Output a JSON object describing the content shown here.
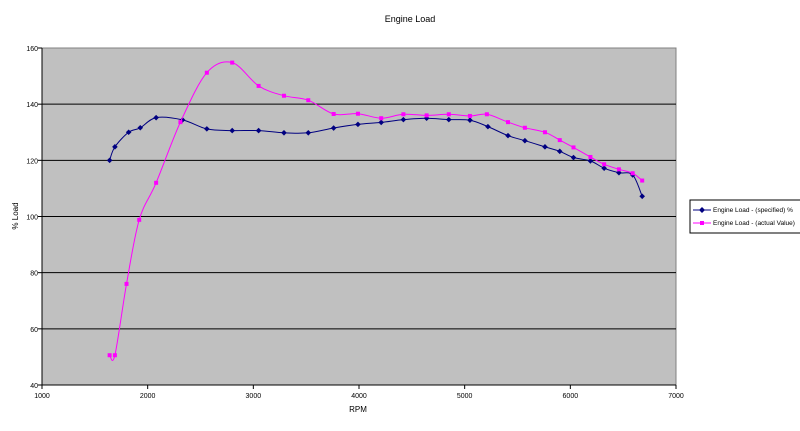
{
  "chart_data": {
    "type": "line",
    "title": "Engine Load",
    "xlabel": "RPM",
    "ylabel": "% Load",
    "xlim": [
      1000,
      7000
    ],
    "ylim": [
      40,
      160
    ],
    "x_ticks": [
      1000,
      2000,
      3000,
      4000,
      5000,
      6000,
      7000
    ],
    "y_ticks": [
      40,
      60,
      80,
      100,
      120,
      140,
      160
    ],
    "grid": "horizontal",
    "legend_position": "right",
    "plot_background": "#c0c0c0",
    "series": [
      {
        "name": "Engine Load - (specified)  %",
        "color": "#000080",
        "marker": "diamond",
        "points": [
          [
            1640,
            120.0
          ],
          [
            1690,
            124.8
          ],
          [
            1820,
            130.0
          ],
          [
            1930,
            131.6
          ],
          [
            2080,
            135.2
          ],
          [
            2330,
            134.4
          ],
          [
            2560,
            131.2
          ],
          [
            2800,
            130.6
          ],
          [
            3050,
            130.6
          ],
          [
            3290,
            129.8
          ],
          [
            3520,
            129.8
          ],
          [
            3760,
            131.5
          ],
          [
            3990,
            132.8
          ],
          [
            4210,
            133.5
          ],
          [
            4420,
            134.5
          ],
          [
            4640,
            135.0
          ],
          [
            4850,
            134.5
          ],
          [
            5050,
            134.3
          ],
          [
            5220,
            132.0
          ],
          [
            5410,
            128.8
          ],
          [
            5570,
            127.0
          ],
          [
            5760,
            124.8
          ],
          [
            5900,
            123.2
          ],
          [
            6030,
            121.0
          ],
          [
            6190,
            119.8
          ],
          [
            6320,
            117.2
          ],
          [
            6460,
            115.6
          ],
          [
            6590,
            114.8
          ],
          [
            6680,
            107.2
          ]
        ]
      },
      {
        "name": "Engine Load - (actual Value)",
        "color": "#ff00ff",
        "marker": "square",
        "points": [
          [
            1640,
            50.6
          ],
          [
            1690,
            50.6
          ],
          [
            1800,
            76.0
          ],
          [
            1920,
            98.8
          ],
          [
            2080,
            112.0
          ],
          [
            2310,
            133.6
          ],
          [
            2560,
            151.2
          ],
          [
            2800,
            154.8
          ],
          [
            3050,
            146.5
          ],
          [
            3290,
            143.0
          ],
          [
            3520,
            141.4
          ],
          [
            3760,
            136.5
          ],
          [
            3990,
            136.6
          ],
          [
            4210,
            135.0
          ],
          [
            4420,
            136.4
          ],
          [
            4640,
            136.0
          ],
          [
            4850,
            136.4
          ],
          [
            5050,
            135.8
          ],
          [
            5210,
            136.4
          ],
          [
            5410,
            133.6
          ],
          [
            5570,
            131.6
          ],
          [
            5760,
            130.0
          ],
          [
            5900,
            127.2
          ],
          [
            6030,
            124.6
          ],
          [
            6190,
            121.2
          ],
          [
            6320,
            118.6
          ],
          [
            6460,
            116.8
          ],
          [
            6590,
            115.4
          ],
          [
            6680,
            112.8
          ]
        ]
      }
    ]
  }
}
